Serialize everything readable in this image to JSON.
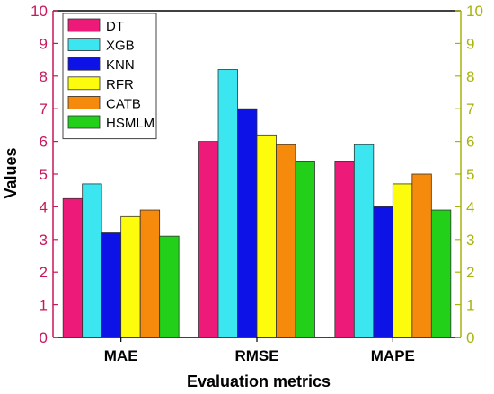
{
  "chart_data": {
    "type": "bar",
    "title": "",
    "xlabel": "Evaluation metrics",
    "ylabel": "Values",
    "ylim": [
      0,
      10
    ],
    "yticks": [
      0,
      1,
      2,
      3,
      4,
      5,
      6,
      7,
      8,
      9,
      10
    ],
    "categories": [
      "MAE",
      "RMSE",
      "MAPE"
    ],
    "series": [
      {
        "name": "DT",
        "values": [
          4.25,
          6.0,
          5.4
        ],
        "color": "#ee1a7a"
      },
      {
        "name": "XGB",
        "values": [
          4.7,
          8.2,
          5.9
        ],
        "color": "#3ce6f0"
      },
      {
        "name": "KNN",
        "values": [
          3.2,
          7.0,
          4.0
        ],
        "color": "#0d12e6"
      },
      {
        "name": "RFR",
        "values": [
          3.7,
          6.2,
          4.7
        ],
        "color": "#fcfc0c"
      },
      {
        "name": "CATB",
        "values": [
          3.9,
          5.9,
          5.0
        ],
        "color": "#f58a0c"
      },
      {
        "name": "HSMLM",
        "values": [
          3.1,
          5.4,
          3.9
        ],
        "color": "#22d019"
      }
    ],
    "grid": false,
    "legend_position": "top-left",
    "left_axis_color": "#c8175a",
    "right_axis_color": "#a8b40a"
  }
}
